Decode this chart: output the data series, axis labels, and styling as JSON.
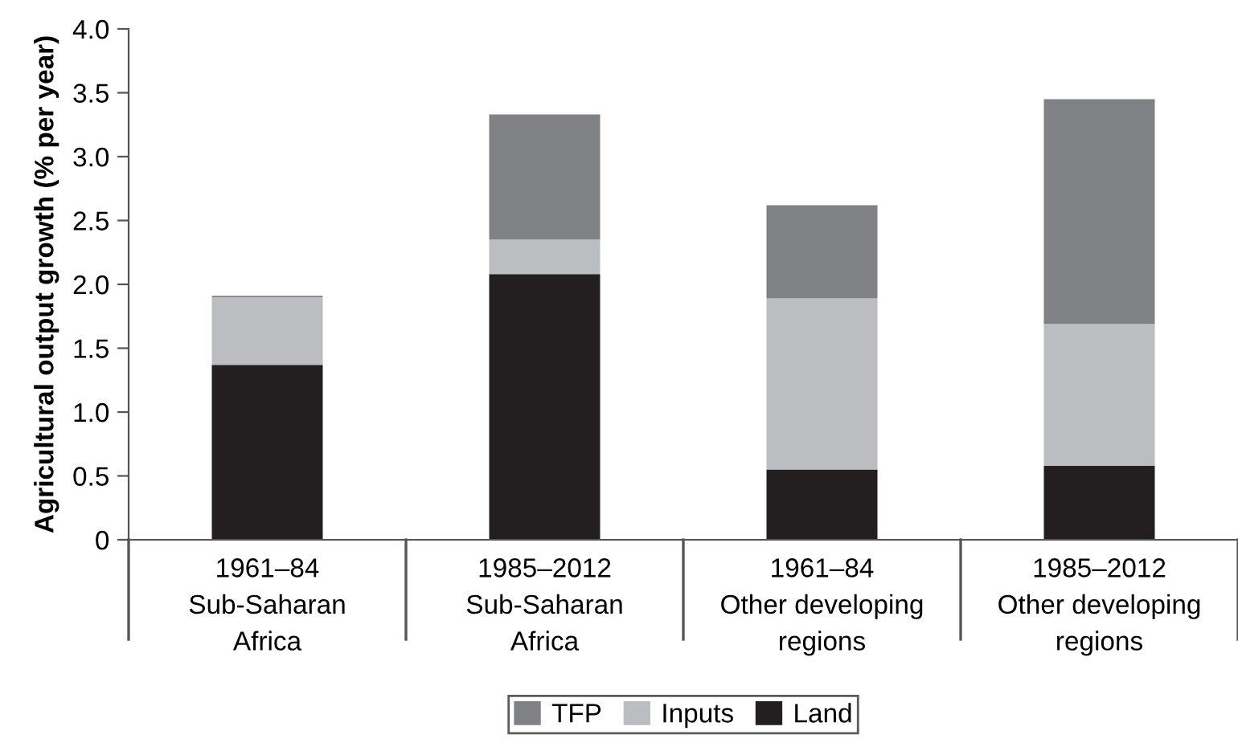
{
  "chart_data": {
    "type": "bar",
    "stacked": true,
    "ylabel": "Agricultural output growth (% per year)",
    "categories": [
      "1961–84\nSub-Saharan\nAfrica",
      "1985–2012\nSub-Saharan\nAfrica",
      "1961–84\nOther developing\nregions",
      "1985–2012\nOther developing\nregions"
    ],
    "series": [
      {
        "name": "Land",
        "color": "#231f20",
        "values": [
          1.37,
          2.08,
          0.55,
          0.58
        ]
      },
      {
        "name": "Inputs",
        "color": "#bcbdc0",
        "values": [
          0.53,
          0.27,
          1.34,
          1.11
        ]
      },
      {
        "name": "TFP",
        "color": "#808184",
        "values": [
          0.01,
          0.98,
          0.73,
          1.76
        ]
      }
    ],
    "ylim": [
      0,
      4.0
    ],
    "yticks": [
      {
        "value": 0,
        "label": "0"
      },
      {
        "value": 0.5,
        "label": "0.5"
      },
      {
        "value": 1.0,
        "label": "1.0"
      },
      {
        "value": 1.5,
        "label": "1.5"
      },
      {
        "value": 2.0,
        "label": "2.0"
      },
      {
        "value": 2.5,
        "label": "2.5"
      },
      {
        "value": 3.0,
        "label": "3.0"
      },
      {
        "value": 3.5,
        "label": "3.5"
      },
      {
        "value": 4.0,
        "label": "4.0"
      }
    ],
    "grid": false,
    "legend": "bottom"
  }
}
